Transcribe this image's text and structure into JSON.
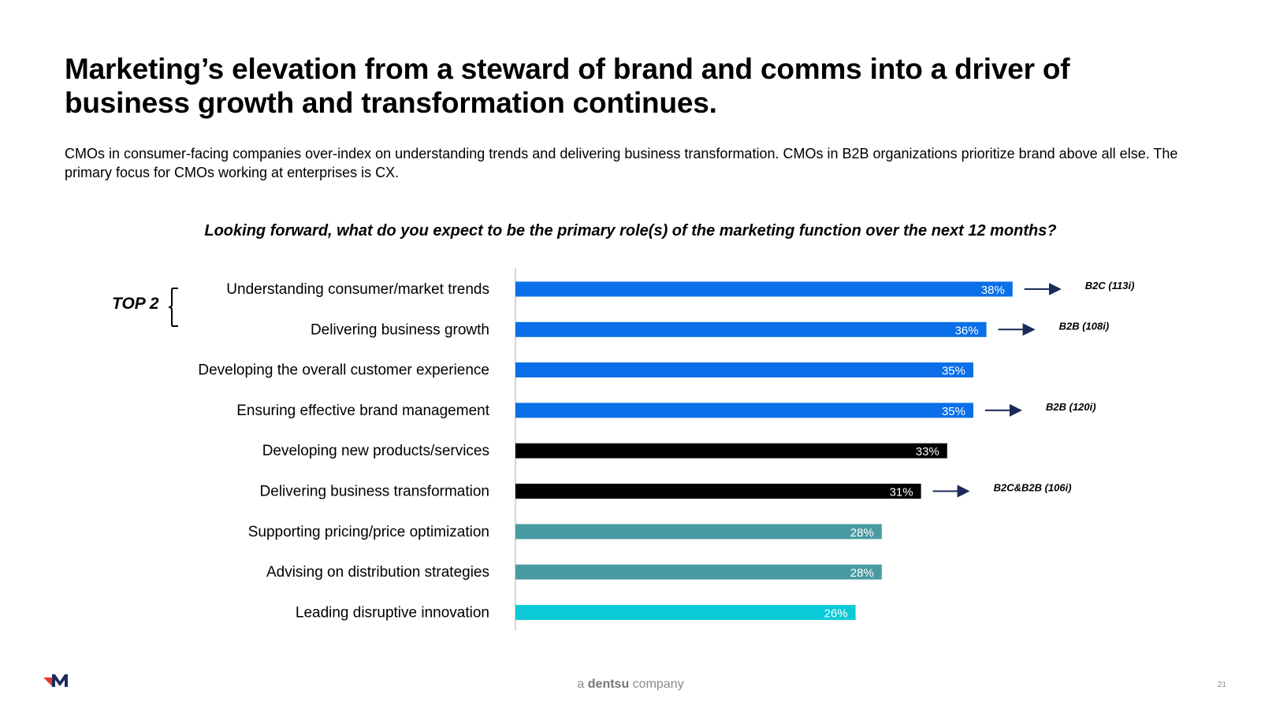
{
  "slide": {
    "title": "Marketing’s elevation from a steward of brand and comms into a driver of business growth and transformation continues.",
    "subtitle": "CMOs in consumer-facing companies over-index on understanding trends and delivering business transformation. CMOs in B2B organizations prioritize brand above all else. The primary focus for CMOs working at enterprises is CX.",
    "question": "Looking forward, what do you expect to be the primary role(s) of the marketing function over the next 12 months?",
    "top2_label": "TOP 2",
    "footer": {
      "company_prefix": "a",
      "company_name": "dentsu",
      "company_suffix": "company",
      "page_number": "21"
    }
  },
  "chart_data": {
    "type": "bar",
    "orientation": "horizontal",
    "title": "Looking forward, what do you expect to be the primary role(s) of the marketing function over the next 12 months?",
    "xlim": [
      0,
      40
    ],
    "unit": "%",
    "categories": [
      "Understanding consumer/market trends",
      "Delivering business growth",
      "Developing the overall customer experience",
      "Ensuring effective brand management",
      "Developing new products/services",
      "Delivering business transformation",
      "Supporting pricing/price optimization",
      "Advising on distribution strategies",
      "Leading disruptive innovation"
    ],
    "values": [
      38,
      36,
      35,
      35,
      33,
      31,
      28,
      28,
      26
    ],
    "value_labels": [
      "38%",
      "36%",
      "35%",
      "35%",
      "33%",
      "31%",
      "28%",
      "28%",
      "26%"
    ],
    "bar_colors": [
      "#0a6fe8",
      "#0a6fe8",
      "#0a6fe8",
      "#0a6fe8",
      "#000000",
      "#000000",
      "#4a9aa3",
      "#4a9aa3",
      "#0bc9d6"
    ],
    "annotations": [
      {
        "category_index": 0,
        "text": "B2C (113i)"
      },
      {
        "category_index": 1,
        "text": "B2B (108i)"
      },
      {
        "category_index": 3,
        "text": "B2B (120i)"
      },
      {
        "category_index": 5,
        "text": "B2C&B2B (106i)"
      }
    ],
    "arrow_color": "#1c2a5a",
    "axis_color": "#c8c8c8"
  },
  "colors": {
    "logo_red": "#e8392b",
    "logo_navy": "#1c2a5a"
  }
}
